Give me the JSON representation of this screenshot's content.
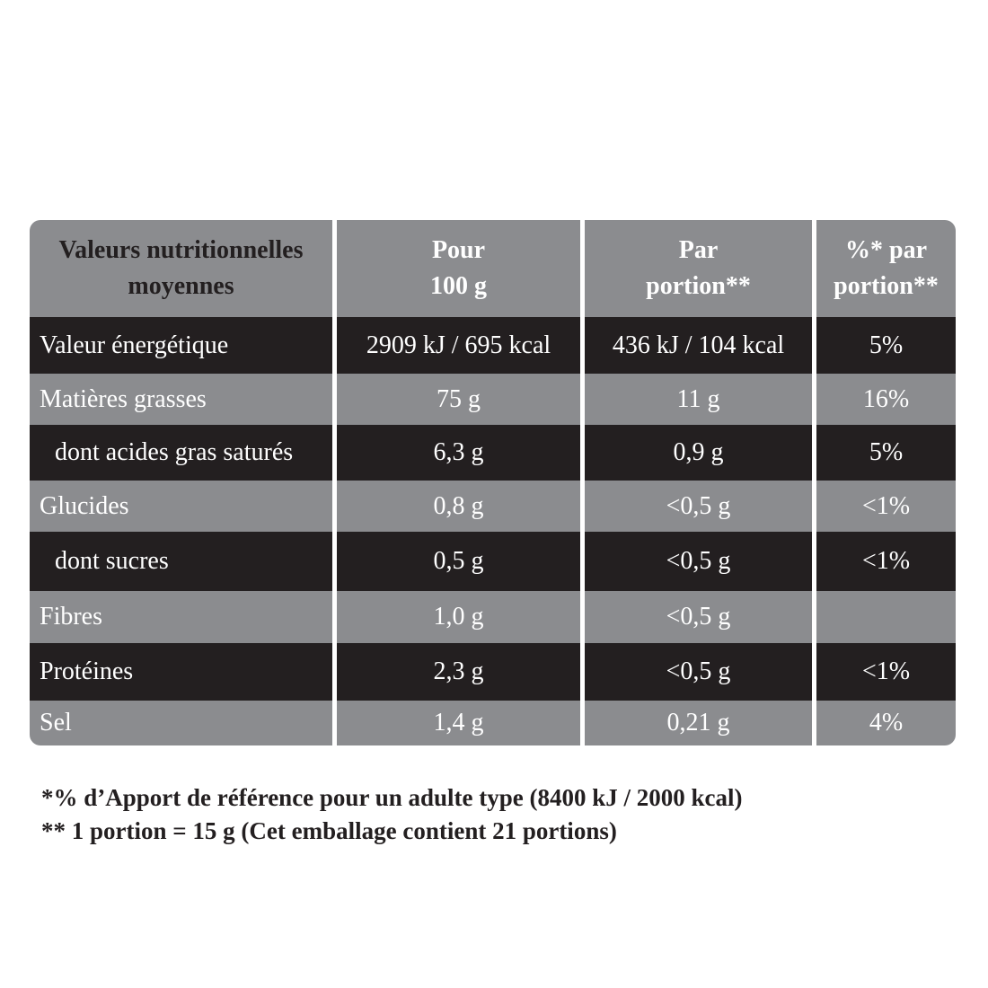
{
  "header": {
    "col1": [
      "Valeurs nutritionnelles",
      "moyennes"
    ],
    "col2": [
      "Pour",
      "100 g"
    ],
    "col3": [
      "Par",
      "portion**"
    ],
    "col4": [
      "%* par",
      "portion**"
    ]
  },
  "rows": [
    {
      "label": "Valeur énergétique",
      "per100": "2909 kJ / 695 kcal",
      "portion": "436 kJ / 104 kcal",
      "pct": "5%"
    },
    {
      "label": "Matières grasses",
      "per100": "75 g",
      "portion": "11 g",
      "pct": "16%"
    },
    {
      "label": "dont acides gras saturés",
      "per100": "6,3 g",
      "portion": "0,9 g",
      "pct": "5%"
    },
    {
      "label": "Glucides",
      "per100": "0,8 g",
      "portion": "<0,5 g",
      "pct": "<1%"
    },
    {
      "label": "dont sucres",
      "per100": "0,5 g",
      "portion": "<0,5 g",
      "pct": "<1%"
    },
    {
      "label": "Fibres",
      "per100": "1,0 g",
      "portion": "<0,5 g",
      "pct": ""
    },
    {
      "label": "Protéines",
      "per100": "2,3 g",
      "portion": "<0,5 g",
      "pct": "<1%"
    },
    {
      "label": "Sel",
      "per100": "1,4 g",
      "portion": "0,21 g",
      "pct": "4%"
    }
  ],
  "footnotes": [
    "*% d’Apport de référence pour un adulte type (8400 kJ / 2000 kcal)",
    "** 1 portion = 15 g (Cet emballage contient 21 portions)"
  ],
  "colors": {
    "gray": "#8b8c8f",
    "dark": "#231f20"
  }
}
